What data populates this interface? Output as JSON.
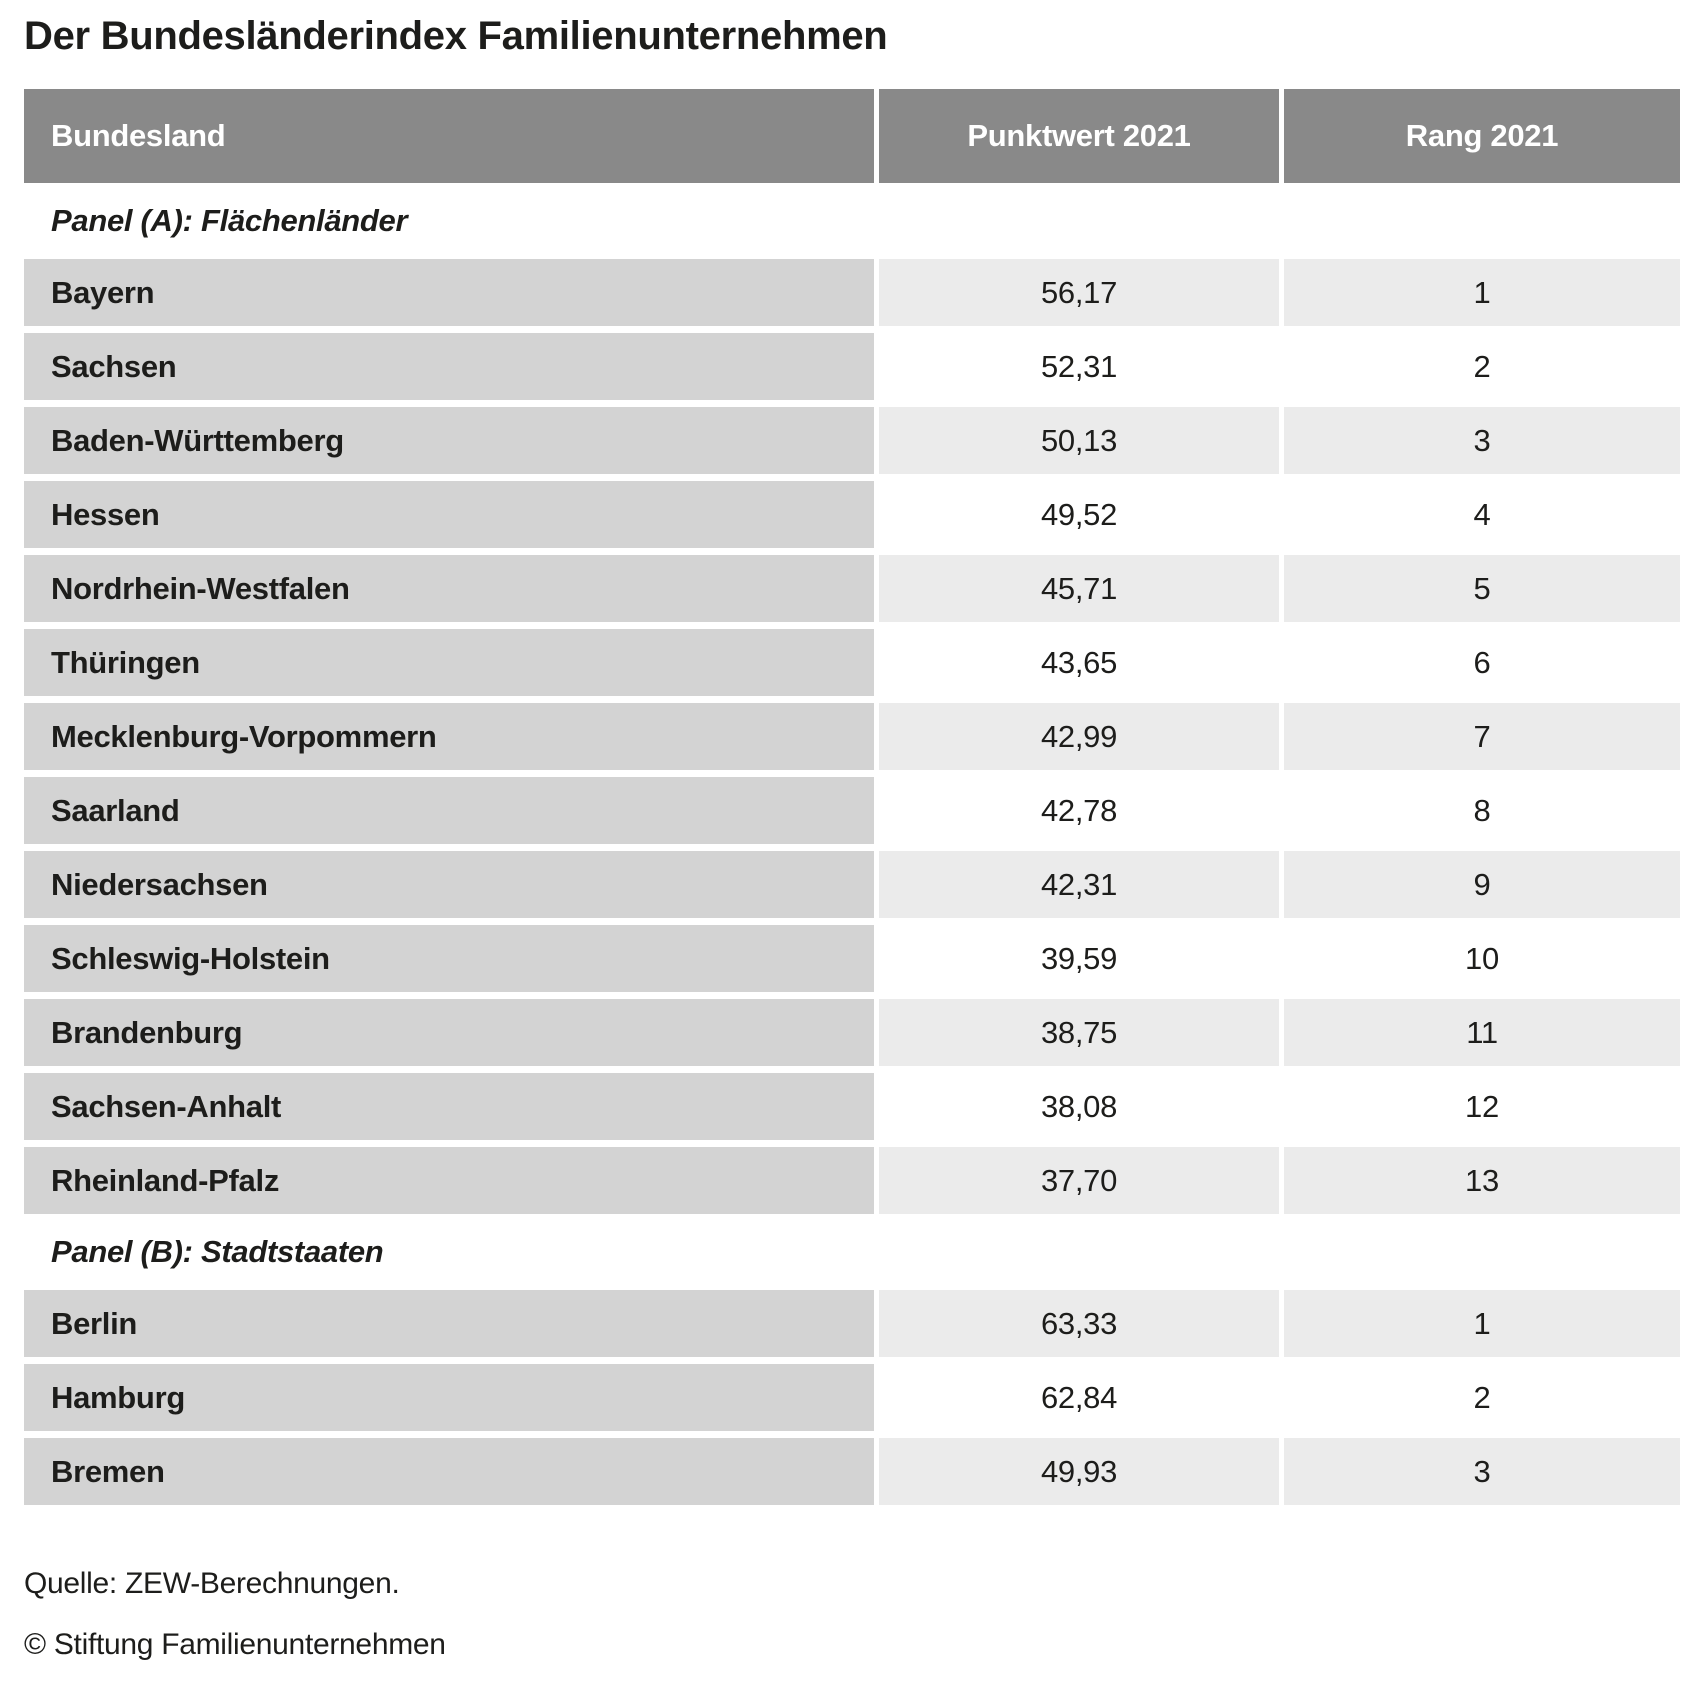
{
  "title": "Der Bundesländerindex Familienunternehmen",
  "table": {
    "columns": {
      "bundesland": "Bundesland",
      "punktwert": "Punktwert 2021",
      "rang": "Rang 2021"
    },
    "panels": [
      {
        "label": "Panel (A): Flächenländer",
        "rows": [
          {
            "bundesland": "Bayern",
            "punktwert": "56,17",
            "rang": "1"
          },
          {
            "bundesland": "Sachsen",
            "punktwert": "52,31",
            "rang": "2"
          },
          {
            "bundesland": "Baden-Württemberg",
            "punktwert": "50,13",
            "rang": "3"
          },
          {
            "bundesland": "Hessen",
            "punktwert": "49,52",
            "rang": "4"
          },
          {
            "bundesland": "Nordrhein-Westfalen",
            "punktwert": "45,71",
            "rang": "5"
          },
          {
            "bundesland": "Thüringen",
            "punktwert": "43,65",
            "rang": "6"
          },
          {
            "bundesland": "Mecklenburg-Vorpommern",
            "punktwert": "42,99",
            "rang": "7"
          },
          {
            "bundesland": "Saarland",
            "punktwert": "42,78",
            "rang": "8"
          },
          {
            "bundesland": "Niedersachsen",
            "punktwert": "42,31",
            "rang": "9"
          },
          {
            "bundesland": "Schleswig-Holstein",
            "punktwert": "39,59",
            "rang": "10"
          },
          {
            "bundesland": "Brandenburg",
            "punktwert": "38,75",
            "rang": "11"
          },
          {
            "bundesland": "Sachsen-Anhalt",
            "punktwert": "38,08",
            "rang": "12"
          },
          {
            "bundesland": "Rheinland-Pfalz",
            "punktwert": "37,70",
            "rang": "13"
          }
        ]
      },
      {
        "label": "Panel (B): Stadtstaaten",
        "rows": [
          {
            "bundesland": "Berlin",
            "punktwert": "63,33",
            "rang": "1"
          },
          {
            "bundesland": "Hamburg",
            "punktwert": "62,84",
            "rang": "2"
          },
          {
            "bundesland": "Bremen",
            "punktwert": "49,93",
            "rang": "3"
          }
        ]
      }
    ]
  },
  "footer": {
    "source": "Quelle: ZEW-Berechnungen.",
    "copyright": "© Stiftung Familienunternehmen"
  },
  "colors": {
    "header_bg": "#898989",
    "header_text": "#ffffff",
    "label_cell_bg": "#d3d3d3",
    "zebra_odd_bg": "#ebebeb",
    "zebra_even_bg": "#ffffff",
    "text": "#1d1d1b"
  },
  "chart_data": {
    "type": "table",
    "title": "Der Bundesländerindex Familienunternehmen",
    "columns": [
      "Bundesland",
      "Punktwert 2021",
      "Rang 2021"
    ],
    "sections": [
      {
        "name": "Panel (A): Flächenländer",
        "rows": [
          [
            "Bayern",
            56.17,
            1
          ],
          [
            "Sachsen",
            52.31,
            2
          ],
          [
            "Baden-Württemberg",
            50.13,
            3
          ],
          [
            "Hessen",
            49.52,
            4
          ],
          [
            "Nordrhein-Westfalen",
            45.71,
            5
          ],
          [
            "Thüringen",
            43.65,
            6
          ],
          [
            "Mecklenburg-Vorpommern",
            42.99,
            7
          ],
          [
            "Saarland",
            42.78,
            8
          ],
          [
            "Niedersachsen",
            42.31,
            9
          ],
          [
            "Schleswig-Holstein",
            39.59,
            10
          ],
          [
            "Brandenburg",
            38.75,
            11
          ],
          [
            "Sachsen-Anhalt",
            38.08,
            12
          ],
          [
            "Rheinland-Pfalz",
            37.7,
            13
          ]
        ]
      },
      {
        "name": "Panel (B): Stadtstaaten",
        "rows": [
          [
            "Berlin",
            63.33,
            1
          ],
          [
            "Hamburg",
            62.84,
            2
          ],
          [
            "Bremen",
            49.93,
            3
          ]
        ]
      }
    ],
    "source": "Quelle: ZEW-Berechnungen.",
    "copyright": "© Stiftung Familienunternehmen"
  }
}
